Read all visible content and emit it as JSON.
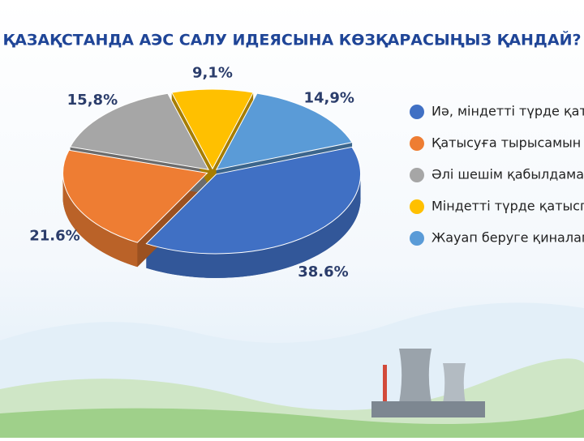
{
  "chart_data": {
    "type": "pie",
    "title": "ҚАЗАҚСТАНДА АЭС САЛУ ИДЕЯСЫНА КӨЗҚАРАСЫҢЫЗ ҚАНДАЙ?",
    "categories": [
      "Иә, міндетті түрде қаты",
      "Қатысуға тырысамын",
      "Әлі шешім қабылдамад",
      "Міндетті түрде қатыспа",
      "Жауап беруге қиналам"
    ],
    "values": [
      38.6,
      21.6,
      15.8,
      9.1,
      14.9
    ],
    "value_labels": [
      "38.6%",
      "21.6%",
      "15,8%",
      "9,1%",
      "14,9%"
    ],
    "colors": [
      "#4070c4",
      "#ee7d33",
      "#a6a6a6",
      "#ffc000",
      "#5a9bd7"
    ]
  }
}
